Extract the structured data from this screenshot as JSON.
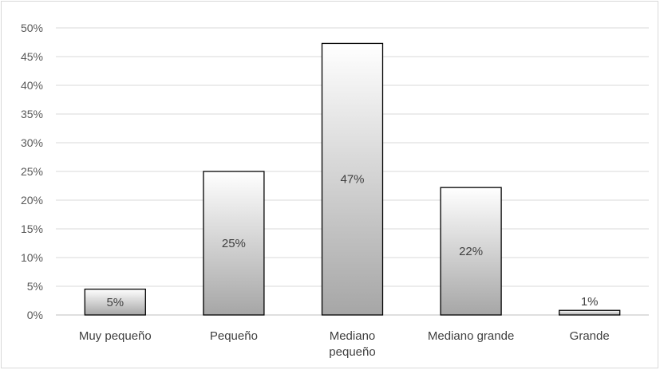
{
  "chart_data": {
    "type": "bar",
    "title": "",
    "xlabel": "",
    "ylabel": "",
    "categories": [
      "Muy pequeño",
      "Pequeño",
      "Mediano pequeño",
      "Mediano grande",
      "Grande"
    ],
    "category_label_lines": [
      [
        "Muy pequeño"
      ],
      [
        "Pequeño"
      ],
      [
        "Mediano",
        "pequeño"
      ],
      [
        "Mediano grande"
      ],
      [
        "Grande"
      ]
    ],
    "values": [
      4.5,
      25,
      47.3,
      22.2,
      0.8
    ],
    "data_labels": [
      "5%",
      "25%",
      "47%",
      "22%",
      "1%"
    ],
    "ylim": [
      0,
      50
    ],
    "yticks": [
      0,
      5,
      10,
      15,
      20,
      25,
      30,
      35,
      40,
      45,
      50
    ],
    "ytick_labels": [
      "0%",
      "5%",
      "10%",
      "15%",
      "20%",
      "25%",
      "30%",
      "35%",
      "40%",
      "45%",
      "50%"
    ],
    "grid": true,
    "legend": "none",
    "colors": {
      "bar_top": "#ffffff",
      "bar_bottom": "#a6a6a6",
      "bar_border": "#000000",
      "grid": "#d9d9d9",
      "axis": "#bfbfbf"
    }
  }
}
